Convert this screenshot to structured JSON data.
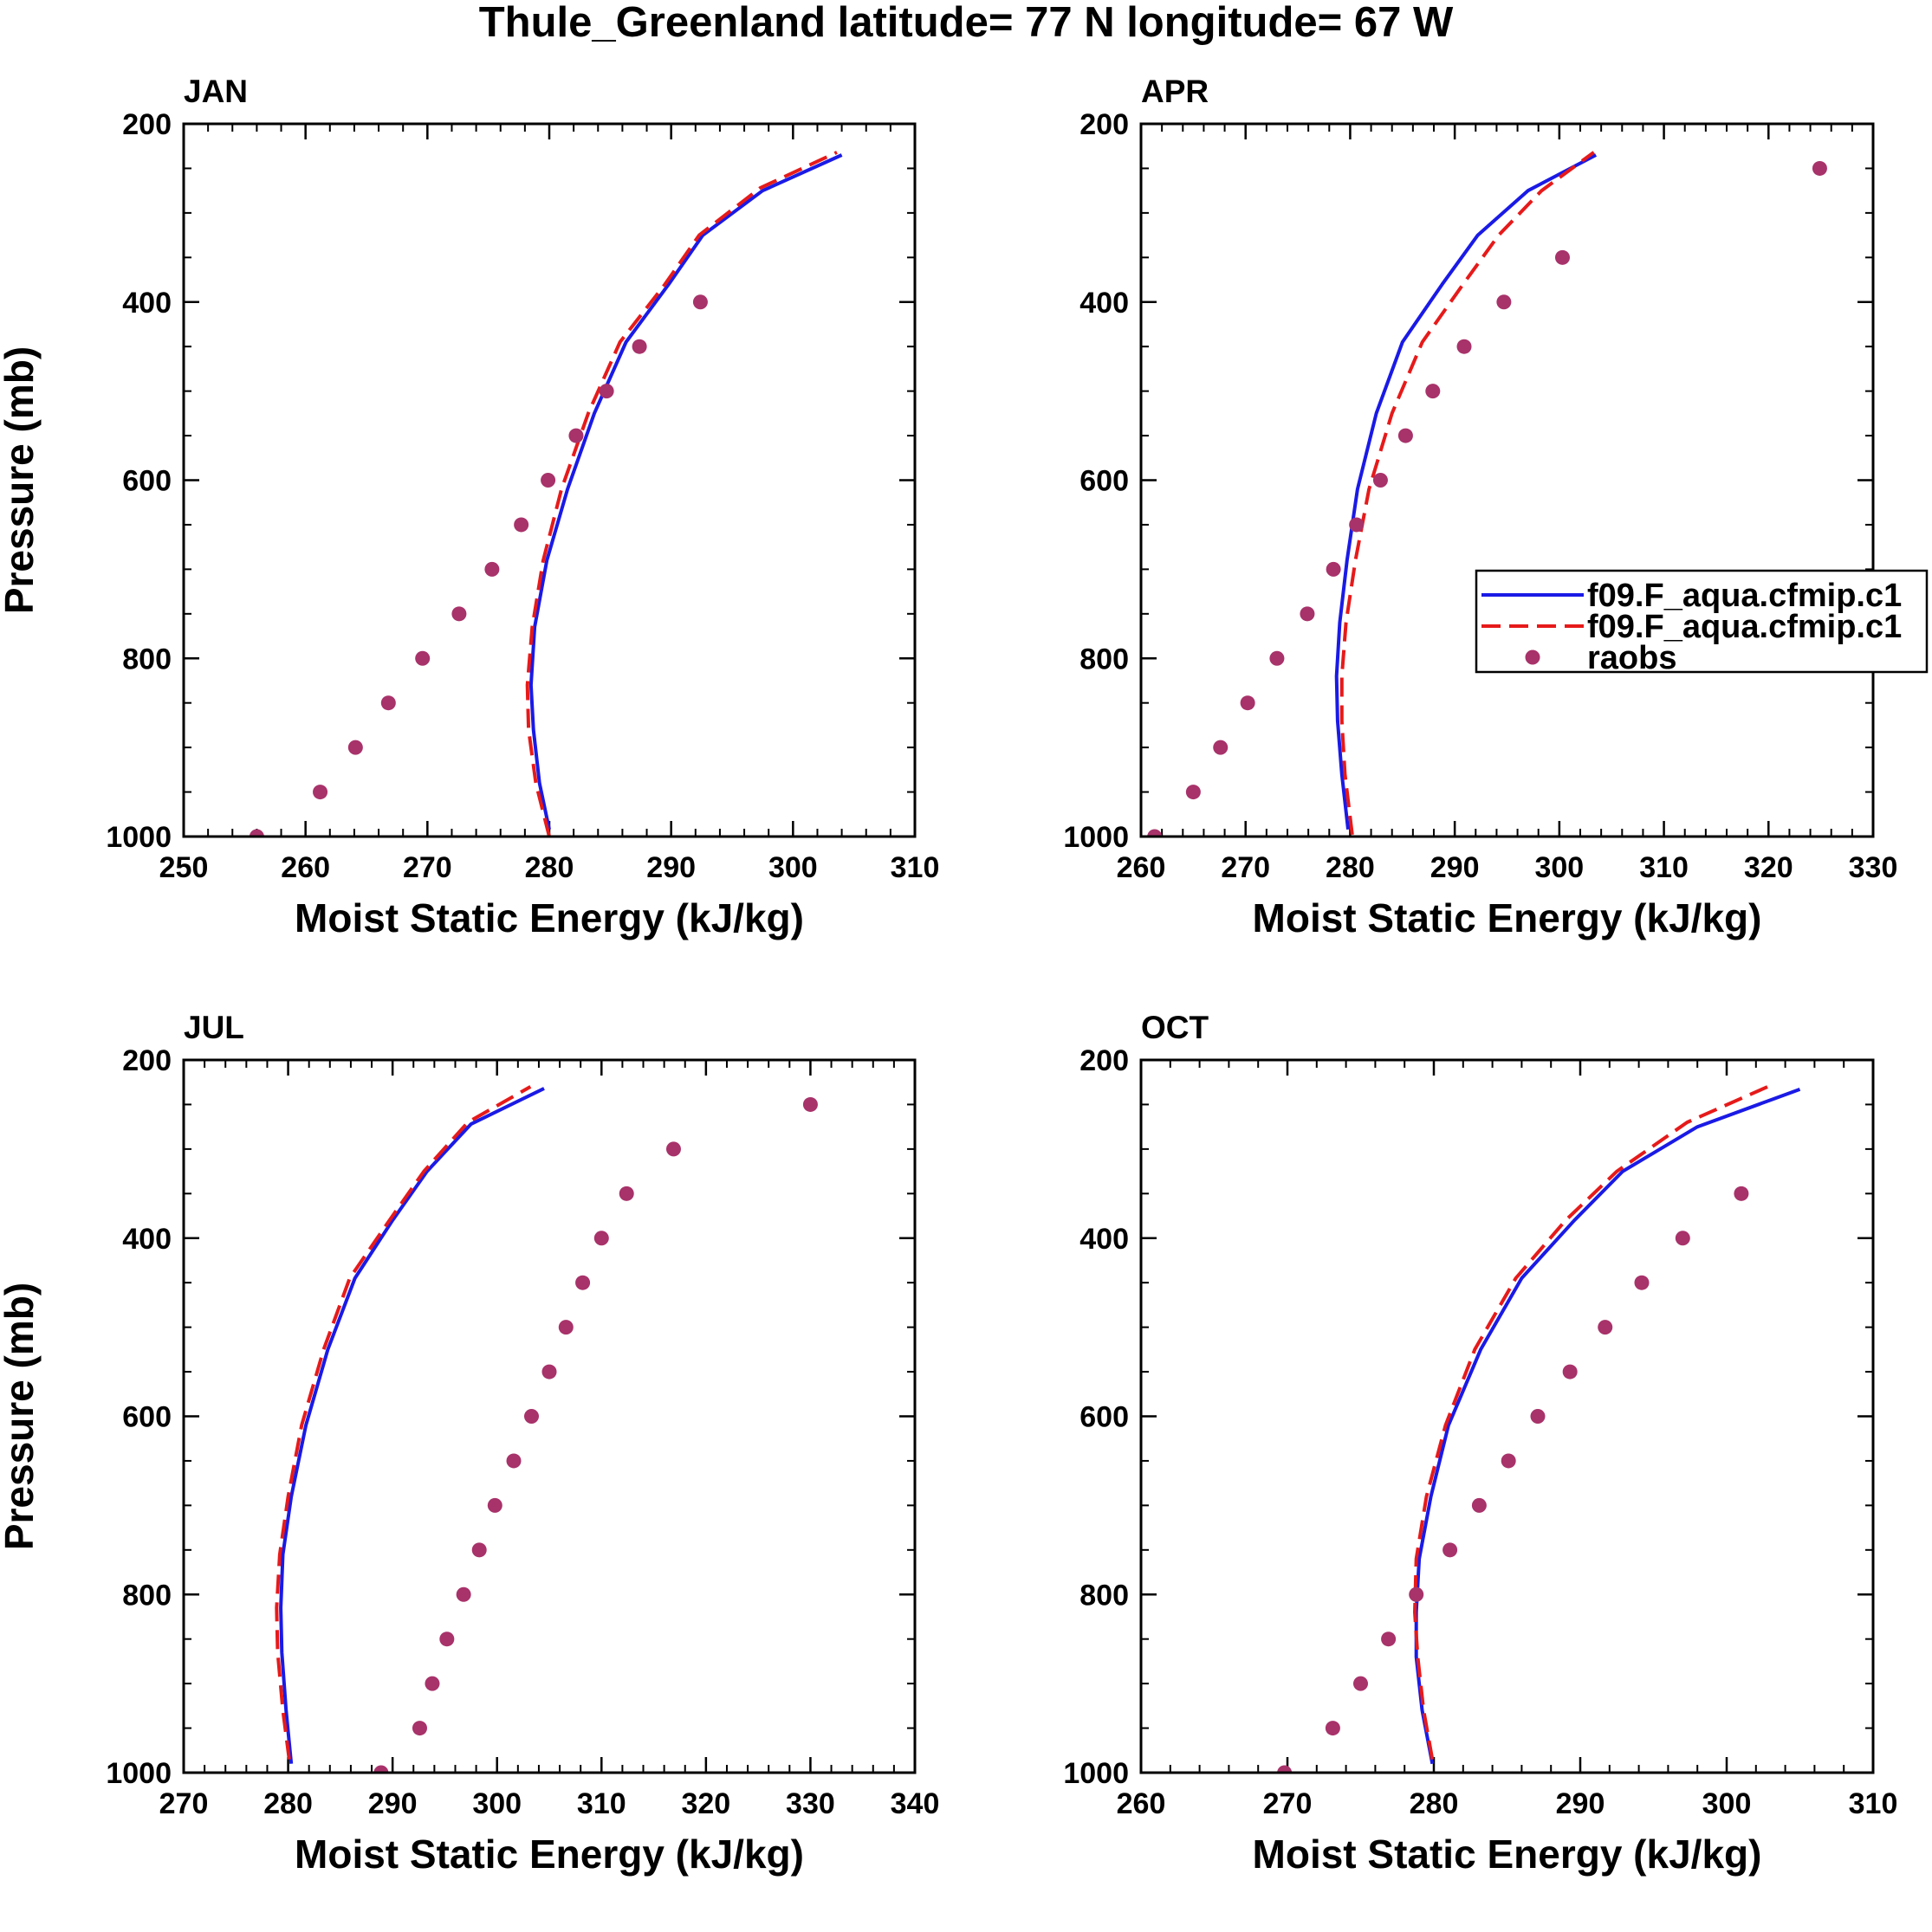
{
  "chart_data": {
    "type": "line",
    "title": "Thule_Greenland  latitude= 77 N longitude= 67 W",
    "legend": {
      "position": "right",
      "entries": [
        {
          "name": "f09.F_aqua.cfmip.c1",
          "style": "solid",
          "color": "#1a1ae6"
        },
        {
          "name": "f09.F_aqua.cfmip.c1",
          "style": "dashed",
          "color": "#e61a1a"
        },
        {
          "name": "raobs",
          "style": "marker",
          "color": "#a8326a"
        }
      ]
    },
    "panels": [
      {
        "label": "JAN",
        "xlabel": "Moist Static Energy (kJ/kg)",
        "ylabel": "Pressure (mb)",
        "xlim": [
          250,
          310
        ],
        "xticks": [
          250,
          260,
          270,
          280,
          290,
          300,
          310
        ],
        "ylim": [
          200,
          1000
        ],
        "yticks": [
          200,
          400,
          600,
          800,
          1000
        ],
        "series": [
          {
            "name": "f09.F_aqua.cfmip.c1",
            "style": "solid",
            "x": [
              280.0,
              279.2,
              278.7,
              278.5,
              278.8,
              279.8,
              281.5,
              283.7,
              286.3,
              289.8,
              292.6,
              297.5,
              304.0
            ],
            "y": [
              992,
              940,
              880,
              830,
              765,
              690,
              610,
              525,
              445,
              380,
              325,
              275,
              235
            ]
          },
          {
            "name": "f09.F_aqua.cfmip.c1",
            "style": "dashed",
            "x": [
              280.0,
              278.9,
              278.3,
              278.2,
              278.6,
              279.5,
              281.0,
              283.2,
              285.8,
              289.5,
              292.3,
              297.3,
              303.6
            ],
            "y": [
              1000,
              940,
              880,
              830,
              765,
              690,
              610,
              525,
              445,
              380,
              325,
              272,
              232
            ]
          },
          {
            "name": "raobs",
            "style": "marker",
            "x": [
              256.0,
              261.2,
              264.1,
              266.8,
              269.6,
              272.6,
              275.3,
              277.7,
              279.9,
              282.2,
              284.7,
              287.4,
              292.4
            ],
            "y": [
              1000,
              950,
              900,
              850,
              800,
              750,
              700,
              650,
              600,
              550,
              500,
              450,
              400
            ]
          }
        ]
      },
      {
        "label": "APR",
        "xlabel": "Moist Static Energy (kJ/kg)",
        "ylabel": "",
        "xlim": [
          260,
          330
        ],
        "xticks": [
          260,
          270,
          280,
          290,
          300,
          310,
          320,
          330
        ],
        "ylim": [
          200,
          1000
        ],
        "yticks": [
          200,
          400,
          600,
          800,
          1000
        ],
        "show_legend": true,
        "series": [
          {
            "name": "f09.F_aqua.cfmip.c1",
            "style": "solid",
            "x": [
              279.8,
              279.2,
              278.8,
              278.7,
              279.0,
              279.7,
              280.7,
              282.5,
              285.0,
              288.8,
              292.2,
              297.0,
              303.5
            ],
            "y": [
              992,
              930,
              870,
              820,
              760,
              690,
              610,
              525,
              445,
              380,
              325,
              275,
              235
            ]
          },
          {
            "name": "f09.F_aqua.cfmip.c1",
            "style": "dashed",
            "x": [
              280.2,
              279.5,
              279.2,
              279.2,
              279.6,
              280.5,
              281.8,
              284.0,
              286.9,
              290.8,
              294.2,
              298.3,
              303.3
            ],
            "y": [
              998,
              930,
              870,
              820,
              760,
              690,
              610,
              525,
              445,
              380,
              325,
              275,
              232
            ]
          },
          {
            "name": "raobs",
            "style": "marker",
            "x": [
              261.3,
              265.0,
              267.6,
              270.2,
              273.0,
              275.9,
              278.4,
              280.6,
              282.9,
              285.3,
              287.9,
              290.9,
              294.7,
              300.3,
              324.9
            ],
            "y": [
              1000,
              950,
              900,
              850,
              800,
              750,
              700,
              650,
              600,
              550,
              500,
              450,
              400,
              350,
              250
            ]
          }
        ]
      },
      {
        "label": "JUL",
        "xlabel": "Moist Static Energy (kJ/kg)",
        "ylabel": "Pressure (mb)",
        "xlim": [
          270,
          340
        ],
        "xticks": [
          270,
          280,
          290,
          300,
          310,
          320,
          330,
          340
        ],
        "ylim": [
          200,
          1000
        ],
        "yticks": [
          200,
          400,
          600,
          800,
          1000
        ],
        "series": [
          {
            "name": "f09.F_aqua.cfmip.c1",
            "style": "solid",
            "x": [
              280.3,
              279.8,
              279.4,
              279.3,
              279.5,
              280.3,
              281.7,
              283.8,
              286.4,
              290.0,
              293.3,
              297.5,
              304.5
            ],
            "y": [
              990,
              930,
              865,
              815,
              755,
              690,
              610,
              525,
              445,
              380,
              325,
              272,
              232
            ]
          },
          {
            "name": "f09.F_aqua.cfmip.c1",
            "style": "dashed",
            "x": [
              280.1,
              279.5,
              279.0,
              278.9,
              279.2,
              280.0,
              281.3,
              283.4,
              285.9,
              289.7,
              293.0,
              297.2,
              303.2
            ],
            "y": [
              985,
              930,
              865,
              815,
              755,
              690,
              610,
              525,
              445,
              380,
              325,
              270,
              230
            ]
          },
          {
            "name": "raobs",
            "style": "marker",
            "x": [
              288.9,
              292.6,
              293.8,
              295.2,
              296.8,
              298.3,
              299.8,
              301.6,
              303.3,
              305.0,
              306.6,
              308.2,
              310.0,
              312.4,
              316.9,
              330.0
            ],
            "y": [
              1000,
              950,
              900,
              850,
              800,
              750,
              700,
              650,
              600,
              550,
              500,
              450,
              400,
              350,
              300,
              250
            ]
          }
        ]
      },
      {
        "label": "OCT",
        "xlabel": "Moist Static Energy (kJ/kg)",
        "ylabel": "",
        "xlim": [
          260,
          310
        ],
        "xticks": [
          260,
          270,
          280,
          290,
          300,
          310
        ],
        "ylim": [
          200,
          1000
        ],
        "yticks": [
          200,
          400,
          600,
          800,
          1000
        ],
        "series": [
          {
            "name": "f09.F_aqua.cfmip.c1",
            "style": "solid",
            "x": [
              279.9,
              279.2,
              278.8,
              278.8,
              279.0,
              279.8,
              281.0,
              283.2,
              286.0,
              289.6,
              292.9,
              298.0,
              305.0
            ],
            "y": [
              990,
              930,
              870,
              820,
              760,
              690,
              610,
              525,
              445,
              380,
              325,
              275,
              233
            ]
          },
          {
            "name": "f09.F_aqua.cfmip.c1",
            "style": "dashed",
            "x": [
              279.9,
              279.3,
              278.9,
              278.7,
              278.8,
              279.5,
              280.8,
              282.8,
              285.6,
              289.0,
              292.5,
              297.3,
              302.8
            ],
            "y": [
              985,
              930,
              870,
              820,
              760,
              690,
              610,
              525,
              445,
              380,
              325,
              270,
              230
            ]
          },
          {
            "name": "raobs",
            "style": "marker",
            "x": [
              269.8,
              273.1,
              275.0,
              276.9,
              278.8,
              281.1,
              283.1,
              285.1,
              287.1,
              289.3,
              291.7,
              294.2,
              297.0,
              301.0
            ],
            "y": [
              1000,
              950,
              900,
              850,
              800,
              750,
              700,
              650,
              600,
              550,
              500,
              450,
              400,
              350
            ]
          }
        ]
      }
    ]
  }
}
